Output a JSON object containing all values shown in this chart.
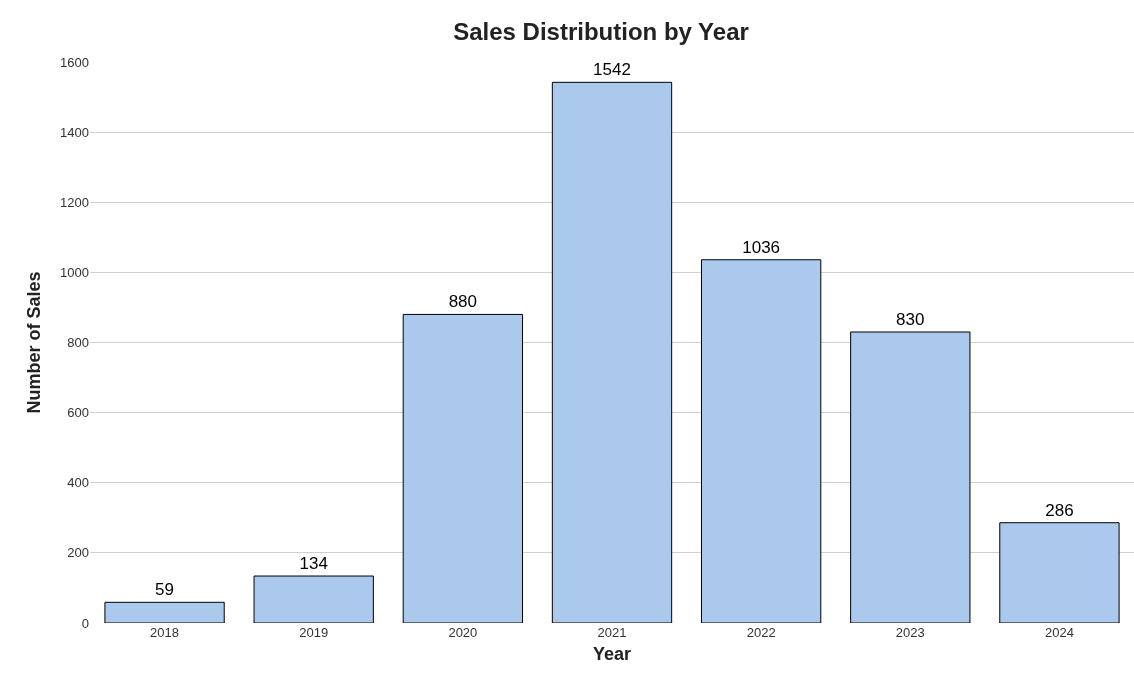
{
  "chart_data": {
    "type": "bar",
    "title": "Sales Distribution by Year",
    "xlabel": "Year",
    "ylabel": "Number of Sales",
    "categories": [
      "2018",
      "2019",
      "2020",
      "2021",
      "2022",
      "2023",
      "2024"
    ],
    "values": [
      59,
      134,
      880,
      1542,
      1036,
      830,
      286
    ],
    "color": "#abc9ec",
    "ylim": [
      0,
      1600
    ],
    "yticks": [
      0,
      200,
      400,
      600,
      800,
      1000,
      1200,
      1400,
      1600
    ],
    "grid": "y",
    "data_labels": true
  }
}
